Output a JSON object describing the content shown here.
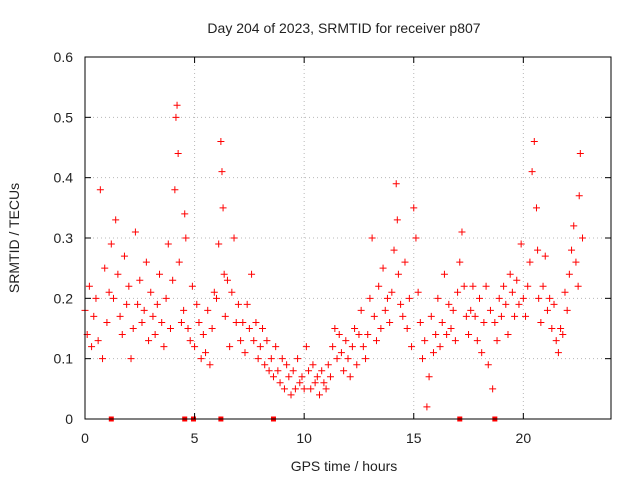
{
  "chart_data": {
    "type": "scatter",
    "title": "Day 204 of 2023, SRMTID for receiver p807",
    "xlabel": "GPS time / hours",
    "ylabel": "SRMTID / TECUs",
    "xlim": [
      0,
      24
    ],
    "ylim": [
      0,
      0.6
    ],
    "xticks": [
      0,
      5,
      10,
      15,
      20
    ],
    "xtick_labels": [
      "0",
      "5",
      "10",
      "15",
      "20"
    ],
    "yticks": [
      0,
      0.1,
      0.2,
      0.3,
      0.4,
      0.5,
      0.6
    ],
    "ytick_labels": [
      "0",
      "0.1",
      "0.2",
      "0.3",
      "0.4",
      "0.5",
      "0.6"
    ],
    "grid": true,
    "marker": "+",
    "color": "#ff0000",
    "series": [
      {
        "name": "SRMTID",
        "x": [
          0.0,
          0.1,
          0.2,
          0.3,
          0.4,
          0.5,
          0.6,
          0.7,
          0.8,
          0.9,
          1.0,
          1.1,
          1.2,
          1.3,
          1.4,
          1.5,
          1.6,
          1.7,
          1.8,
          1.9,
          2.0,
          2.1,
          2.2,
          2.3,
          2.4,
          2.5,
          2.6,
          2.7,
          2.8,
          2.9,
          3.0,
          3.1,
          3.2,
          3.3,
          3.4,
          3.5,
          3.6,
          3.7,
          3.8,
          3.9,
          4.0,
          4.1,
          4.15,
          4.2,
          4.25,
          4.3,
          4.4,
          4.5,
          4.55,
          4.6,
          4.7,
          4.8,
          4.9,
          5.0,
          5.1,
          5.2,
          5.3,
          5.4,
          5.5,
          5.6,
          5.7,
          5.8,
          5.9,
          6.0,
          6.1,
          6.2,
          6.25,
          6.3,
          6.35,
          6.4,
          6.5,
          6.6,
          6.7,
          6.8,
          6.9,
          7.0,
          7.1,
          7.2,
          7.3,
          7.4,
          7.5,
          7.6,
          7.7,
          7.8,
          7.9,
          8.0,
          8.1,
          8.2,
          8.3,
          8.4,
          8.5,
          8.6,
          8.7,
          8.8,
          8.9,
          9.0,
          9.1,
          9.2,
          9.3,
          9.4,
          9.5,
          9.6,
          9.7,
          9.8,
          9.9,
          10.0,
          10.1,
          10.2,
          10.3,
          10.4,
          10.5,
          10.6,
          10.7,
          10.8,
          10.9,
          11.0,
          11.1,
          11.2,
          11.3,
          11.4,
          11.5,
          11.6,
          11.7,
          11.8,
          11.9,
          12.0,
          12.1,
          12.2,
          12.3,
          12.4,
          12.5,
          12.6,
          12.7,
          12.8,
          12.9,
          13.0,
          13.1,
          13.2,
          13.3,
          13.4,
          13.5,
          13.6,
          13.7,
          13.8,
          13.9,
          14.0,
          14.1,
          14.2,
          14.25,
          14.3,
          14.4,
          14.5,
          14.6,
          14.7,
          14.8,
          14.9,
          15.0,
          15.1,
          15.2,
          15.3,
          15.4,
          15.5,
          15.6,
          15.7,
          15.8,
          15.9,
          16.0,
          16.1,
          16.2,
          16.3,
          16.4,
          16.5,
          16.6,
          16.7,
          16.8,
          16.9,
          17.0,
          17.1,
          17.2,
          17.3,
          17.4,
          17.5,
          17.6,
          17.7,
          17.8,
          17.9,
          18.0,
          18.1,
          18.2,
          18.3,
          18.4,
          18.5,
          18.6,
          18.7,
          18.8,
          18.9,
          19.0,
          19.1,
          19.2,
          19.3,
          19.4,
          19.5,
          19.6,
          19.7,
          19.8,
          19.9,
          20.0,
          20.1,
          20.2,
          20.3,
          20.4,
          20.5,
          20.6,
          20.65,
          20.7,
          20.8,
          20.9,
          21.0,
          21.1,
          21.2,
          21.3,
          21.4,
          21.5,
          21.6,
          21.7,
          21.8,
          21.9,
          22.0,
          22.1,
          22.2,
          22.3,
          22.4,
          22.5,
          22.55,
          22.6,
          22.7
        ],
        "y": [
          0.18,
          0.14,
          0.22,
          0.12,
          0.17,
          0.2,
          0.13,
          0.38,
          0.1,
          0.25,
          0.16,
          0.21,
          0.29,
          0.2,
          0.33,
          0.24,
          0.17,
          0.14,
          0.27,
          0.19,
          0.22,
          0.1,
          0.15,
          0.31,
          0.19,
          0.23,
          0.16,
          0.18,
          0.26,
          0.13,
          0.21,
          0.17,
          0.14,
          0.19,
          0.24,
          0.16,
          0.12,
          0.2,
          0.29,
          0.15,
          0.23,
          0.38,
          0.5,
          0.52,
          0.44,
          0.26,
          0.16,
          0.18,
          0.34,
          0.3,
          0.15,
          0.13,
          0.22,
          0.12,
          0.19,
          0.16,
          0.1,
          0.14,
          0.11,
          0.18,
          0.09,
          0.15,
          0.21,
          0.2,
          0.29,
          0.46,
          0.41,
          0.35,
          0.24,
          0.17,
          0.23,
          0.12,
          0.21,
          0.3,
          0.16,
          0.19,
          0.13,
          0.16,
          0.11,
          0.19,
          0.15,
          0.24,
          0.13,
          0.16,
          0.1,
          0.12,
          0.15,
          0.09,
          0.13,
          0.08,
          0.1,
          0.07,
          0.12,
          0.08,
          0.06,
          0.1,
          0.05,
          0.09,
          0.07,
          0.04,
          0.08,
          0.05,
          0.1,
          0.06,
          0.07,
          0.05,
          0.12,
          0.08,
          0.05,
          0.09,
          0.06,
          0.07,
          0.04,
          0.08,
          0.06,
          0.05,
          0.09,
          0.07,
          0.12,
          0.15,
          0.1,
          0.14,
          0.11,
          0.08,
          0.13,
          0.1,
          0.07,
          0.12,
          0.15,
          0.09,
          0.14,
          0.18,
          0.12,
          0.1,
          0.14,
          0.2,
          0.3,
          0.17,
          0.13,
          0.22,
          0.15,
          0.25,
          0.18,
          0.2,
          0.16,
          0.21,
          0.28,
          0.39,
          0.33,
          0.24,
          0.19,
          0.17,
          0.26,
          0.15,
          0.2,
          0.12,
          0.35,
          0.3,
          0.21,
          0.16,
          0.1,
          0.13,
          0.02,
          0.07,
          0.17,
          0.11,
          0.14,
          0.2,
          0.12,
          0.16,
          0.24,
          0.14,
          0.19,
          0.15,
          0.18,
          0.13,
          0.21,
          0.26,
          0.31,
          0.22,
          0.17,
          0.14,
          0.18,
          0.22,
          0.17,
          0.13,
          0.2,
          0.11,
          0.16,
          0.22,
          0.09,
          0.18,
          0.05,
          0.16,
          0.13,
          0.2,
          0.17,
          0.22,
          0.19,
          0.14,
          0.24,
          0.21,
          0.17,
          0.23,
          0.19,
          0.29,
          0.2,
          0.17,
          0.22,
          0.26,
          0.41,
          0.46,
          0.35,
          0.28,
          0.2,
          0.16,
          0.22,
          0.27,
          0.18,
          0.2,
          0.15,
          0.19,
          0.13,
          0.11,
          0.15,
          0.14,
          0.21,
          0.18,
          0.24,
          0.28,
          0.32,
          0.26,
          0.22,
          0.37,
          0.44,
          0.3
        ]
      }
    ],
    "baseline_markers_x": [
      1.2,
      4.55,
      4.95,
      6.2,
      8.6,
      17.1,
      18.7
    ]
  }
}
